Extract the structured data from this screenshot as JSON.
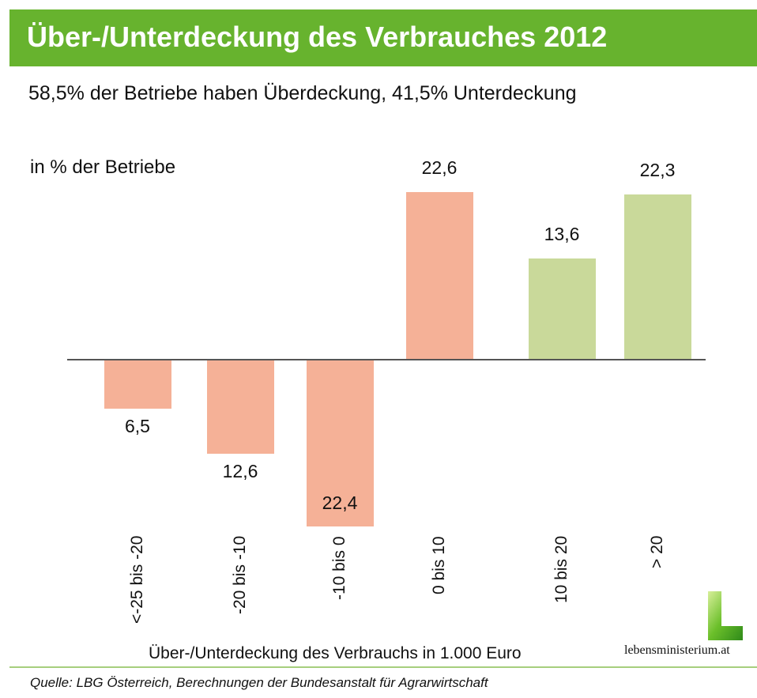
{
  "header": {
    "title": "Über-/Unterdeckung des Verbrauches 2012"
  },
  "subtitle": "58,5% der Betriebe haben Überdeckung, 41,5% Unterdeckung",
  "chart_data": {
    "type": "bar",
    "title": "Über-/Unterdeckung des Verbrauches 2012",
    "ylabel": "in % der Betriebe",
    "xlabel": "Über-/Unterdeckung des Verbrauchs in 1.000 Euro",
    "categories": [
      "<-25 bis -20",
      "-20 bis -10",
      "-10 bis 0",
      "0 bis 10",
      "10 bis 20",
      "> 20"
    ],
    "values": [
      -6.5,
      -12.6,
      -22.4,
      22.6,
      13.6,
      22.3
    ],
    "labels": [
      "6,5",
      "12,6",
      "22,4",
      "22,6",
      "13,6",
      "22,3"
    ],
    "colors": [
      "#f5b197",
      "#f5b197",
      "#f5b197",
      "#f5b197",
      "#c9d99a",
      "#c9d99a"
    ],
    "ylim": [
      -25,
      25
    ],
    "grid": false
  },
  "source": "Quelle: LBG Österreich, Berechnungen der Bundesanstalt für Agrarwirtschaft",
  "logo": {
    "text": "lebensministerium.at"
  },
  "colors": {
    "header": "#67b32e",
    "deficit": "#f5b197",
    "surplus": "#c9d99a"
  }
}
